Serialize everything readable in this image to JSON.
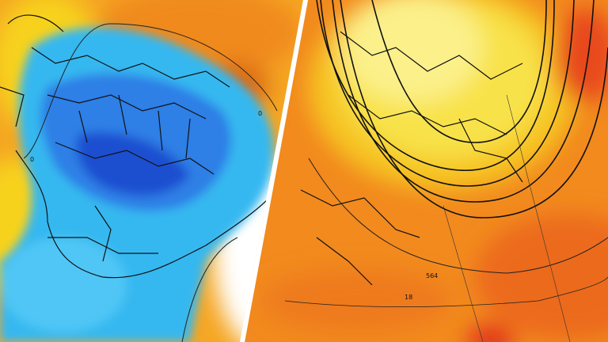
{
  "maps": [
    {
      "labels": [
        "0",
        "0"
      ]
    },
    {
      "labels": [
        "564",
        "18"
      ]
    }
  ]
}
